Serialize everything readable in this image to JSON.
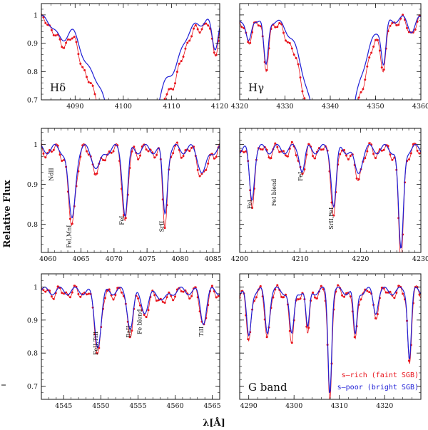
{
  "figure": {
    "ylabel": "Relative Flux",
    "xlabel": "λ[Å]",
    "colors": {
      "rich": "#e8141c",
      "poor": "#1f1fd6",
      "axis": "#111111"
    }
  },
  "legend": {
    "rich_label": "s–rich (faint SGB)",
    "poor_label": "s–poor (bright SGB)"
  },
  "chart_data": [
    {
      "type": "line",
      "title": "Hδ",
      "xlim": [
        4083,
        4120
      ],
      "ylim": [
        0.7,
        1.04
      ],
      "xticks": [
        4090,
        4100,
        4110,
        4120
      ],
      "yticks": [
        0.7,
        0.8,
        0.9,
        1
      ],
      "features": [],
      "lines": [
        {
          "c": 4087.0,
          "d": 0.06,
          "w": 1.2
        },
        {
          "c": 4092.3,
          "d": 0.05,
          "w": 1.0
        },
        {
          "c": 4101.7,
          "d": 0.5,
          "w": 5.5
        },
        {
          "c": 4111.0,
          "d": 0.05,
          "w": 1.0
        },
        {
          "c": 4119.0,
          "d": 0.1,
          "w": 0.6
        }
      ]
    },
    {
      "type": "line",
      "title": "Hγ",
      "xlim": [
        4320,
        4360
      ],
      "ylim": [
        0.7,
        1.04
      ],
      "xticks": [
        4320,
        4330,
        4340,
        4350,
        4360
      ],
      "yticks": [
        0.7,
        0.8,
        0.9,
        1
      ],
      "features": [],
      "lines": [
        {
          "c": 4322.0,
          "d": 0.09,
          "w": 0.6
        },
        {
          "c": 4325.8,
          "d": 0.17,
          "w": 0.5
        },
        {
          "c": 4340.5,
          "d": 0.55,
          "w": 4.5
        },
        {
          "c": 4351.8,
          "d": 0.14,
          "w": 0.5
        },
        {
          "c": 4358.0,
          "d": 0.04,
          "w": 0.8
        }
      ]
    },
    {
      "type": "line",
      "title": "",
      "xlim": [
        4059,
        4086
      ],
      "ylim": [
        0.73,
        1.04
      ],
      "xticks": [
        4060,
        4065,
        4070,
        4075,
        4080,
        4085
      ],
      "yticks": [
        0.8,
        0.9,
        1
      ],
      "features": [
        {
          "text": "NdII",
          "x": 4060.8,
          "y": 0.925,
          "rot": -90
        },
        {
          "text": "FeI,MnI",
          "x": 4063.5,
          "y": 0.77,
          "rot": -90
        },
        {
          "text": "FeI",
          "x": 4071.5,
          "y": 0.81,
          "rot": -90
        },
        {
          "text": "SrII",
          "x": 4077.5,
          "y": 0.795,
          "rot": -90
        }
      ],
      "lines": [
        {
          "c": 4063.6,
          "d": 0.18,
          "w": 0.5
        },
        {
          "c": 4071.7,
          "d": 0.16,
          "w": 0.4
        },
        {
          "c": 4077.7,
          "d": 0.16,
          "w": 0.35
        },
        {
          "c": 4067.5,
          "d": 0.05,
          "w": 0.6
        },
        {
          "c": 4083.5,
          "d": 0.06,
          "w": 0.6
        }
      ]
    },
    {
      "type": "line",
      "title": "",
      "xlim": [
        4200,
        4230
      ],
      "ylim": [
        0.73,
        1.04
      ],
      "xticks": [
        4200,
        4210,
        4220,
        4230
      ],
      "yticks": [
        0.8,
        0.9,
        1
      ],
      "features": [
        {
          "text": "FeI",
          "x": 4202.0,
          "y": 0.85,
          "rot": -90
        },
        {
          "text": "FeI blend",
          "x": 4206.0,
          "y": 0.88,
          "rot": -90
        },
        {
          "text": "FeI",
          "x": 4210.4,
          "y": 0.92,
          "rot": -90
        },
        {
          "text": "SrII,FeI",
          "x": 4215.5,
          "y": 0.815,
          "rot": -90
        }
      ],
      "lines": [
        {
          "c": 4202.0,
          "d": 0.12,
          "w": 0.4
        },
        {
          "c": 4210.4,
          "d": 0.05,
          "w": 0.4
        },
        {
          "c": 4215.6,
          "d": 0.14,
          "w": 0.4
        },
        {
          "c": 4226.7,
          "d": 0.26,
          "w": 0.4
        },
        {
          "c": 4219.5,
          "d": 0.06,
          "w": 0.6
        }
      ]
    },
    {
      "type": "line",
      "title": "",
      "xlim": [
        4542,
        4566
      ],
      "ylim": [
        0.66,
        1.04
      ],
      "xticks": [
        4545,
        4550,
        4555,
        4560,
        4565
      ],
      "yticks": [
        0.7,
        0.8,
        0.9,
        1
      ],
      "features": [
        {
          "text": "FeII,TiII",
          "x": 4549.6,
          "y": 0.83,
          "rot": -90
        },
        {
          "text": "BaII",
          "x": 4554.0,
          "y": 0.865,
          "rot": -90
        },
        {
          "text": "Fe blend",
          "x": 4555.5,
          "y": 0.895,
          "rot": -90
        },
        {
          "text": "TiII",
          "x": 4563.8,
          "y": 0.865,
          "rot": -90
        }
      ],
      "lines": [
        {
          "c": 4549.6,
          "d": 0.16,
          "w": 0.45
        },
        {
          "c": 4554.0,
          "d": 0.11,
          "w": 0.4
        },
        {
          "c": 4556.0,
          "d": 0.06,
          "w": 0.5
        },
        {
          "c": 4563.8,
          "d": 0.09,
          "w": 0.4
        },
        {
          "c": 4558.5,
          "d": 0.03,
          "w": 0.5
        }
      ]
    },
    {
      "type": "line",
      "title": "G band",
      "xlim": [
        4288,
        4328
      ],
      "ylim": [
        0.66,
        1.04
      ],
      "xticks": [
        4290,
        4300,
        4310,
        4320
      ],
      "yticks": [
        0.7,
        0.8,
        0.9,
        1
      ],
      "features": [],
      "lines": [
        {
          "c": 4290.0,
          "d": 0.14,
          "w": 0.5
        },
        {
          "c": 4294.1,
          "d": 0.12,
          "w": 0.5
        },
        {
          "c": 4299.5,
          "d": 0.14,
          "w": 0.5
        },
        {
          "c": 4303.0,
          "d": 0.12,
          "w": 0.4
        },
        {
          "c": 4307.9,
          "d": 0.3,
          "w": 0.4
        },
        {
          "c": 4313.5,
          "d": 0.14,
          "w": 0.4
        },
        {
          "c": 4325.5,
          "d": 0.2,
          "w": 0.4
        },
        {
          "c": 4318.0,
          "d": 0.06,
          "w": 0.5
        }
      ]
    }
  ]
}
